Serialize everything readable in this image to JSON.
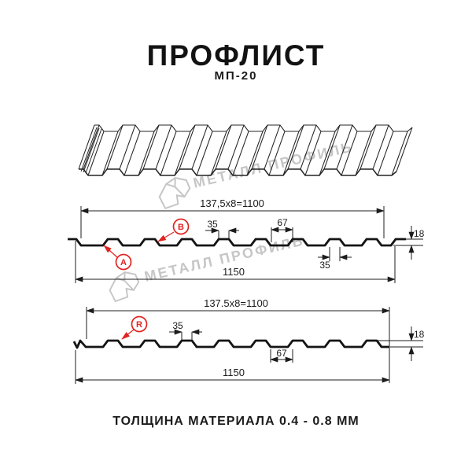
{
  "header": {
    "title": "ПРОФЛИСТ",
    "subtitle": "МП-20"
  },
  "footer": {
    "note": "ТОЛЩИНА МАТЕРИАЛА 0.4 - 0.8 ММ"
  },
  "watermark": {
    "brand": "МЕТАЛЛ ПРОФИЛЬ"
  },
  "colors": {
    "accent_red": "#e02420",
    "line": "#1c1c1c",
    "watermark_gray": "#c6c6c6"
  },
  "diagram": {
    "section_top": {
      "module_width": "137,5x8=1100",
      "overall_width": "1150",
      "rib_top_width": "35",
      "rib_bottom_width": "35",
      "valley_width": "67",
      "profile_height": "18",
      "marker_a": "A",
      "marker_b": "B"
    },
    "section_bottom": {
      "module_width": "137.5x8=1100",
      "overall_width": "1150",
      "rib_top_width": "35",
      "valley_width": "67",
      "profile_height": "18",
      "marker_r": "R"
    }
  }
}
